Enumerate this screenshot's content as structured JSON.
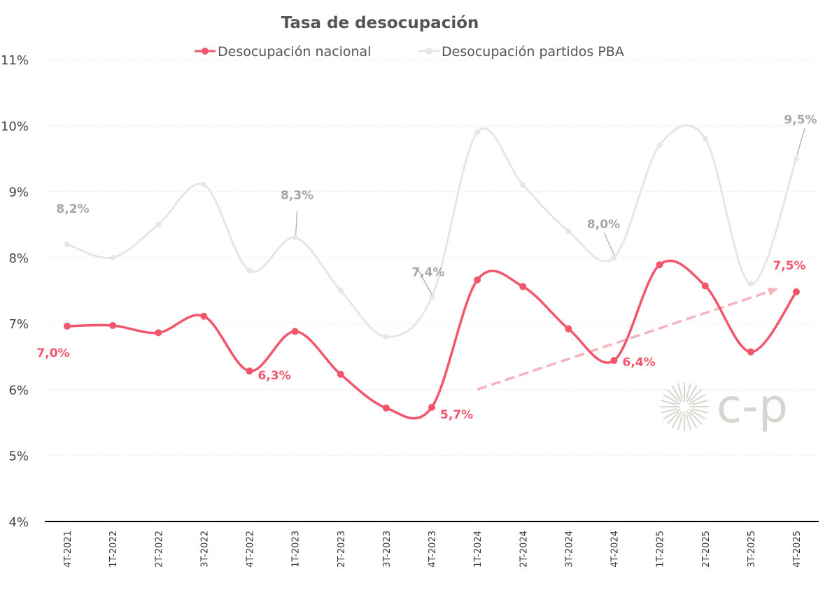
{
  "colors": {
    "national": "#f2566d",
    "pba": "#e6e6e6",
    "pba_label": "#a6a6a6",
    "trend": "#f6b3bd",
    "grid": "#e5e5e5",
    "axis": "#000000",
    "logo": "#d6d6d0"
  },
  "logo": {
    "text": "c-p",
    "icon": "sunburst-icon"
  },
  "chart_data": {
    "type": "line",
    "title": "Tasa de desocupación",
    "legend_position": "top",
    "categories": [
      "4T-2021",
      "1T-2022",
      "2T-2022",
      "3T-2022",
      "4T-2022",
      "1T-2023",
      "2T-2023",
      "3T-2023",
      "4T-2023",
      "1T-2024",
      "2T-2024",
      "3T-2024",
      "4T-2024",
      "1T-2025",
      "2T-2025",
      "3T-2025",
      "4T-2025"
    ],
    "y_ticks": [
      "4%",
      "5%",
      "6%",
      "7%",
      "8%",
      "9%",
      "10%",
      "11%"
    ],
    "ylim": [
      4,
      11
    ],
    "grid": true,
    "series": [
      {
        "name": "Desocupación nacional",
        "values": [
          6.96,
          6.97,
          6.86,
          7.11,
          6.28,
          6.88,
          6.23,
          5.72,
          5.73,
          7.66,
          7.56,
          6.92,
          6.44,
          7.89,
          7.57,
          6.57,
          7.48
        ],
        "labels": [
          {
            "index": 0,
            "text": "7,0%"
          },
          {
            "index": 4,
            "text": "6,3%"
          },
          {
            "index": 8,
            "text": "5,7%"
          },
          {
            "index": 12,
            "text": "6,4%"
          },
          {
            "index": 16,
            "text": "7,5%"
          }
        ]
      },
      {
        "name": "Desocupación partidos PBA",
        "values": [
          8.2,
          8.0,
          8.5,
          9.1,
          7.8,
          8.3,
          7.5,
          6.8,
          7.4,
          9.9,
          9.1,
          8.4,
          8.0,
          9.7,
          9.8,
          7.6,
          9.5
        ],
        "labels": [
          {
            "index": 0,
            "text": "8,2%"
          },
          {
            "index": 5,
            "text": "8,3%"
          },
          {
            "index": 8,
            "text": "7,4%"
          },
          {
            "index": 12,
            "text": "8,0%"
          },
          {
            "index": 16,
            "text": "9,5%"
          }
        ]
      }
    ],
    "trend_arrow": {
      "from": [
        9,
        6.0
      ],
      "to": [
        15.6,
        7.53
      ]
    }
  }
}
